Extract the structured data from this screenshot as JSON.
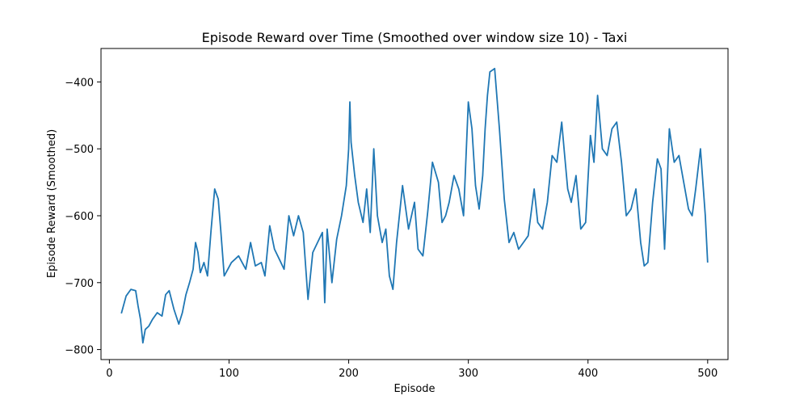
{
  "chart_data": {
    "type": "line",
    "title": "Episode Reward over Time (Smoothed over window size 10) - Taxi",
    "xlabel": "Episode",
    "ylabel": "Episode Reward (Smoothed)",
    "xlim": [
      -7,
      517
    ],
    "ylim": [
      -815,
      -350
    ],
    "xticks": [
      0,
      100,
      200,
      300,
      400,
      500
    ],
    "yticks": [
      -800,
      -700,
      -600,
      -500,
      -400
    ],
    "grid": false,
    "legend": "none",
    "line_color": "#1f77b4",
    "series": [
      {
        "x": [
          10,
          14,
          18,
          22,
          24,
          26,
          28,
          30,
          33,
          36,
          40,
          44,
          47,
          50,
          54,
          58,
          61,
          64,
          67,
          70,
          72,
          74,
          76,
          79,
          82,
          85,
          88,
          91,
          93,
          96,
          99,
          102,
          105,
          108,
          111,
          114,
          118,
          122,
          127,
          130,
          134,
          138,
          142,
          146,
          150,
          154,
          158,
          162,
          166,
          170,
          174,
          178,
          180,
          182,
          186,
          190,
          194,
          198,
          200,
          201,
          202,
          205,
          208,
          212,
          215,
          218,
          221,
          224,
          228,
          231,
          234,
          237,
          240,
          245,
          250,
          255,
          258,
          262,
          266,
          270,
          275,
          278,
          281,
          284,
          288,
          292,
          296,
          300,
          303,
          306,
          309,
          312,
          314,
          316,
          318,
          322,
          326,
          330,
          334,
          338,
          342,
          346,
          350,
          355,
          358,
          362,
          366,
          370,
          374,
          378,
          380,
          383,
          386,
          390,
          394,
          398,
          402,
          405,
          408,
          412,
          416,
          420,
          424,
          428,
          432,
          436,
          440,
          444,
          447,
          450,
          454,
          458,
          461,
          464,
          468,
          472,
          476,
          480,
          484,
          487,
          490,
          494,
          498,
          500
        ],
        "y": [
          -746,
          -720,
          -710,
          -712,
          -735,
          -755,
          -790,
          -770,
          -765,
          -755,
          -745,
          -750,
          -718,
          -712,
          -740,
          -762,
          -745,
          -718,
          -700,
          -680,
          -640,
          -655,
          -685,
          -670,
          -690,
          -622,
          -560,
          -575,
          -620,
          -690,
          -680,
          -670,
          -665,
          -660,
          -670,
          -680,
          -640,
          -675,
          -670,
          -690,
          -615,
          -650,
          -665,
          -680,
          -600,
          -630,
          -600,
          -625,
          -725,
          -655,
          -640,
          -625,
          -730,
          -620,
          -700,
          -635,
          -600,
          -555,
          -500,
          -430,
          -490,
          -540,
          -580,
          -610,
          -560,
          -625,
          -500,
          -600,
          -640,
          -620,
          -690,
          -710,
          -640,
          -555,
          -620,
          -580,
          -650,
          -660,
          -595,
          -520,
          -550,
          -610,
          -600,
          -580,
          -540,
          -560,
          -600,
          -430,
          -470,
          -555,
          -590,
          -540,
          -470,
          -420,
          -385,
          -380,
          -470,
          -575,
          -640,
          -625,
          -650,
          -640,
          -630,
          -560,
          -610,
          -620,
          -580,
          -510,
          -520,
          -460,
          -500,
          -560,
          -580,
          -540,
          -620,
          -610,
          -480,
          -520,
          -420,
          -500,
          -510,
          -470,
          -460,
          -520,
          -600,
          -590,
          -560,
          -640,
          -675,
          -670,
          -580,
          -515,
          -530,
          -650,
          -470,
          -520,
          -510,
          -550,
          -590,
          -600,
          -560,
          -500,
          -600,
          -670
        ],
        "note": ""
      }
    ]
  }
}
